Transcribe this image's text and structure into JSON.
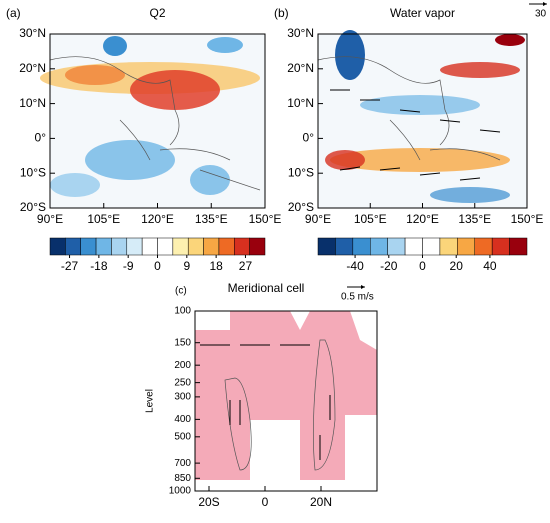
{
  "panels": [
    {
      "label": "(a)",
      "title": "Q2",
      "xlim": [
        90,
        150
      ],
      "ylim": [
        -20,
        30
      ],
      "xticks": [
        {
          "value": 90,
          "label": "90°E"
        },
        {
          "value": 105,
          "label": "105°E"
        },
        {
          "value": 120,
          "label": "120°E"
        },
        {
          "value": 135,
          "label": "135°E"
        },
        {
          "value": 150,
          "label": "150°E"
        }
      ],
      "yticks": [
        {
          "value": -20,
          "label": "20°S"
        },
        {
          "value": -10,
          "label": "10°S"
        },
        {
          "value": 0,
          "label": "0°"
        },
        {
          "value": 10,
          "label": "10°N"
        },
        {
          "value": 20,
          "label": "20°N"
        },
        {
          "value": 30,
          "label": "30°N"
        }
      ],
      "colorbar": {
        "clim": [
          -33,
          33
        ],
        "ticks": [
          -27,
          -18,
          -9,
          0,
          9,
          18,
          27
        ],
        "colors": [
          "#08306b",
          "#1f5fa8",
          "#3a8fd0",
          "#6fb6e6",
          "#a9d4f0",
          "#d6ecf8",
          "#ffffff",
          "#ffffff",
          "#fdf0b0",
          "#fbd57a",
          "#f7a744",
          "#ee6a24",
          "#d7301f",
          "#99000d"
        ]
      }
    },
    {
      "label": "(b)",
      "title": "Water vapor",
      "vector_ref": "30",
      "xlim": [
        90,
        150
      ],
      "ylim": [
        -20,
        30
      ],
      "xticks": [
        {
          "value": 90,
          "label": "90°E"
        },
        {
          "value": 105,
          "label": "105°E"
        },
        {
          "value": 120,
          "label": "120°E"
        },
        {
          "value": 135,
          "label": "135°E"
        },
        {
          "value": 150,
          "label": "150°E"
        }
      ],
      "yticks": [
        {
          "value": -20,
          "label": "20°S"
        },
        {
          "value": -10,
          "label": "10°S"
        },
        {
          "value": 0,
          "label": "0°"
        },
        {
          "value": 10,
          "label": "10°N"
        },
        {
          "value": 20,
          "label": "20°N"
        },
        {
          "value": 30,
          "label": "30°N"
        }
      ],
      "colorbar": {
        "clim": [
          -62,
          62
        ],
        "ticks": [
          -40,
          -20,
          0,
          20,
          40
        ],
        "colors": [
          "#08306b",
          "#1f5fa8",
          "#3a8fd0",
          "#6fb6e6",
          "#a9d4f0",
          "#ffffff",
          "#ffffff",
          "#fbd57a",
          "#f7a744",
          "#ee6a24",
          "#d7301f",
          "#99000d"
        ]
      }
    },
    {
      "label": "(c)",
      "title": "Meridional cell",
      "vector_ref": "0.5 m/s",
      "ylabel": "Level",
      "xlim": [
        -25,
        40
      ],
      "ylim": [
        1000,
        100
      ],
      "log_y": true,
      "xticks": [
        {
          "value": -20,
          "label": "20S"
        },
        {
          "value": 0,
          "label": "0"
        },
        {
          "value": 20,
          "label": "20N"
        }
      ],
      "yticks": [
        100,
        150,
        200,
        250,
        300,
        400,
        500,
        700,
        850,
        1000
      ]
    }
  ]
}
